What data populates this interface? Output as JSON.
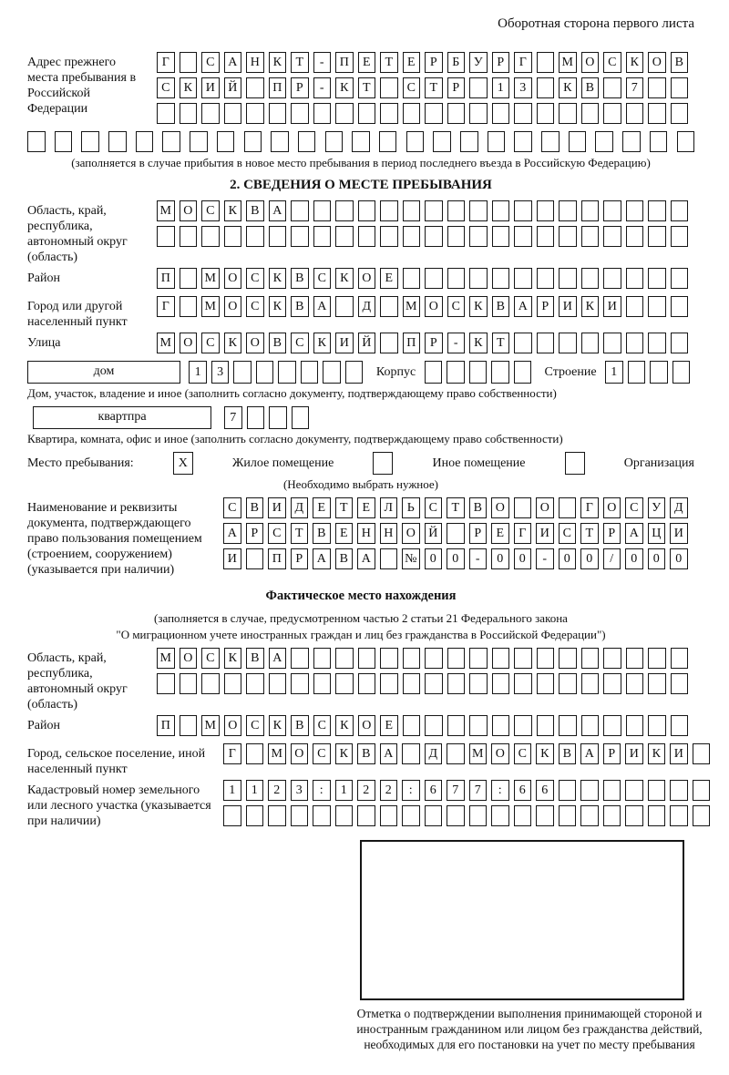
{
  "page_header": "Оборотная сторона первого листа",
  "prev_address": {
    "label": "Адрес прежнего места пребывания в Российской Федерации",
    "rows": [
      {
        "len": 24,
        "text": "Г САНКТ-ПЕТЕРБУРГ МОСКОВ"
      },
      {
        "len": 24,
        "text": "СКИЙ ПР-КТ СТР 13 КВ 7"
      },
      {
        "len": 24,
        "text": ""
      },
      {
        "len": 25,
        "text": ""
      }
    ],
    "note": "(заполняется в случае прибытия в новое место пребывания в период последнего въезда в Российскую Федерацию)"
  },
  "section2": {
    "title": "2. СВЕДЕНИЯ О МЕСТЕ ПРЕБЫВАНИЯ",
    "region": {
      "label": "Область, край, республика, автономный округ (область)",
      "rows": [
        {
          "len": 24,
          "text": "МОСКВА"
        },
        {
          "len": 24,
          "text": ""
        }
      ]
    },
    "district": {
      "label": "Район",
      "row": {
        "len": 24,
        "text": "П МОСКВСКОЕ"
      }
    },
    "city": {
      "label": "Город или другой населенный пункт",
      "row": {
        "len": 24,
        "text": "Г МОСКВА Д МОСКВАРИКИ"
      }
    },
    "street": {
      "label": "Улица",
      "row": {
        "len": 24,
        "text": "МОСКОВСКИЙ ПР-КТ"
      }
    },
    "house": {
      "box_label": "дом",
      "row": {
        "len": 8,
        "text": "13"
      },
      "korpus_label": "Корпус",
      "korpus_row": {
        "len": 5,
        "text": ""
      },
      "stroenie_label": "Строение",
      "stroenie_row": {
        "len": 4,
        "text": "1"
      }
    },
    "house_note": "Дом, участок, владение и иное (заполнить согласно документу, подтверждающему право собственности)",
    "apartment": {
      "box_label": "квартпра",
      "row": {
        "len": 4,
        "text": "7"
      }
    },
    "apartment_note": "Квартира, комната, офис и иное (заполнить согласно документу, подтверждающему право собственности)",
    "stay_type": {
      "label": "Место пребывания:",
      "options": [
        {
          "label": "Жилое помещение",
          "checked": true
        },
        {
          "label": "Иное помещение",
          "checked": false
        },
        {
          "label": "Организация",
          "checked": false
        }
      ],
      "note": "(Необходимо выбрать нужное)"
    },
    "document": {
      "label": "Наименование и реквизиты документа, подтверждающего право пользования помещением (строением, сооружением) (указывается при наличии)",
      "rows": [
        {
          "len": 21,
          "text": "СВИДЕТЕЛЬСТВО О ГОСУД"
        },
        {
          "len": 21,
          "text": "АРСТВЕННОЙ РЕГИСТРАЦИ"
        },
        {
          "len": 21,
          "text": "И ПРАВА №00-00-00/000"
        }
      ]
    }
  },
  "fact_location": {
    "title": "Фактическое место нахождения",
    "note_line1": "(заполняется в случае, предусмотренном частью 2 статьи 21 Федерального закона",
    "note_line2": "\"О миграционном учете иностранных граждан и лиц без гражданства в Российской Федерации\")",
    "region": {
      "label": "Область, край, республика, автономный округ (область)",
      "rows": [
        {
          "len": 24,
          "text": "МОСКВА"
        },
        {
          "len": 24,
          "text": ""
        }
      ]
    },
    "district": {
      "label": "Район",
      "row": {
        "len": 24,
        "text": "П МОСКВСКОЕ"
      }
    },
    "city": {
      "label": "Город, сельское поселение, иной населенный пункт",
      "row": {
        "len": 22,
        "text": "Г МОСКВА Д МОСКВАРИКИ"
      }
    },
    "cadastre": {
      "label": "Кадастровый номер земельного или лесного участка (указывается при наличии)",
      "rows": [
        {
          "len": 22,
          "text": "1123:122:677:66"
        },
        {
          "len": 22,
          "text": ""
        }
      ]
    }
  },
  "confirmation": {
    "caption": "Отметка о подтверждении выполнения принимающей стороной и иностранным гражданином или лицом без гражданства действий, необходимых для его постановки на учет по месту пребывания"
  }
}
